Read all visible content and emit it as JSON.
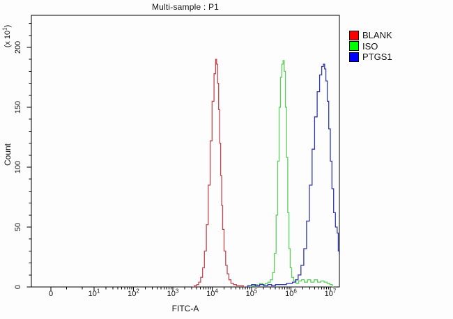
{
  "title": "Multi-sample : P1",
  "axes": {
    "x": {
      "label": "FITC-A",
      "scale": "biexponential-log",
      "tick_labels": [
        {
          "text": "0",
          "sup": ""
        },
        {
          "text": "10",
          "sup": "1"
        },
        {
          "text": "10",
          "sup": "2"
        },
        {
          "text": "10",
          "sup": "3"
        },
        {
          "text": "10",
          "sup": "4"
        },
        {
          "text": "10",
          "sup": "5"
        },
        {
          "text": "10",
          "sup": "6"
        },
        {
          "text": "10",
          "sup": "7"
        }
      ]
    },
    "y": {
      "label": "Count",
      "exponent_label": {
        "prefix": "(x 10",
        "sup": "1",
        "suffix": ")"
      },
      "tick_values": [
        0,
        50,
        100,
        150,
        200
      ],
      "minor_step": 10
    }
  },
  "legend": [
    {
      "label": "BLANK",
      "color": "#ff0000"
    },
    {
      "label": "ISO",
      "color": "#00ff00"
    },
    {
      "label": "PTGS1",
      "color": "#0000ff"
    }
  ],
  "chart_data": {
    "type": "line",
    "subtype": "flow-cytometry-histogram",
    "title": "Multi-sample : P1",
    "xlabel": "FITC-A",
    "ylabel": "Count (x10^1)",
    "x_scale": "log",
    "x_ticks": [
      0,
      10,
      100,
      1000,
      10000,
      100000,
      1000000,
      10000000
    ],
    "ylim": [
      0,
      230
    ],
    "grid": false,
    "legend_position": "top-right-outside",
    "series": [
      {
        "name": "BLANK",
        "legend_color": "#ff0000",
        "line_color": "#c1474f",
        "peak": {
          "x": 12600,
          "y": 190
        },
        "points": [
          [
            3200,
            0
          ],
          [
            3800,
            1
          ],
          [
            4300,
            2
          ],
          [
            4800,
            4
          ],
          [
            5400,
            8
          ],
          [
            6000,
            16
          ],
          [
            6700,
            30
          ],
          [
            7500,
            52
          ],
          [
            8400,
            85
          ],
          [
            9400,
            122
          ],
          [
            10500,
            155
          ],
          [
            11800,
            178
          ],
          [
            12600,
            190
          ],
          [
            13300,
            186
          ],
          [
            14100,
            170
          ],
          [
            15000,
            148
          ],
          [
            15900,
            120
          ],
          [
            16900,
            93
          ],
          [
            17900,
            68
          ],
          [
            19000,
            48
          ],
          [
            21000,
            30
          ],
          [
            23000,
            18
          ],
          [
            25000,
            11
          ],
          [
            28000,
            6
          ],
          [
            32000,
            3
          ],
          [
            38000,
            2
          ],
          [
            45000,
            1
          ],
          [
            55000,
            1
          ],
          [
            70000,
            0
          ]
        ]
      },
      {
        "name": "ISO",
        "legend_color": "#00ff00",
        "line_color": "#5cd05c",
        "peak": {
          "x": 650000,
          "y": 189
        },
        "points": [
          [
            90000,
            0
          ],
          [
            110000,
            1
          ],
          [
            130000,
            2
          ],
          [
            150000,
            1
          ],
          [
            175000,
            3
          ],
          [
            205000,
            2
          ],
          [
            240000,
            3
          ],
          [
            280000,
            4
          ],
          [
            320000,
            6
          ],
          [
            360000,
            12
          ],
          [
            400000,
            28
          ],
          [
            440000,
            60
          ],
          [
            480000,
            105
          ],
          [
            520000,
            150
          ],
          [
            560000,
            175
          ],
          [
            610000,
            186
          ],
          [
            650000,
            189
          ],
          [
            700000,
            180
          ],
          [
            750000,
            150
          ],
          [
            800000,
            108
          ],
          [
            860000,
            62
          ],
          [
            920000,
            32
          ],
          [
            990000,
            16
          ],
          [
            1100000,
            8
          ],
          [
            1250000,
            5
          ],
          [
            1450000,
            3
          ],
          [
            1700000,
            5
          ],
          [
            2000000,
            6
          ],
          [
            2400000,
            4
          ],
          [
            2900000,
            6
          ],
          [
            3500000,
            4
          ],
          [
            4300000,
            6
          ],
          [
            5200000,
            4
          ],
          [
            6300000,
            5
          ],
          [
            7600000,
            4
          ],
          [
            9000000,
            3
          ],
          [
            10500000,
            2
          ],
          [
            12000000,
            0
          ]
        ]
      },
      {
        "name": "PTGS1",
        "legend_color": "#0000ff",
        "line_color": "#3038b0",
        "peak": {
          "x": 6900000,
          "y": 186
        },
        "points": [
          [
            70000,
            0
          ],
          [
            90000,
            1
          ],
          [
            110000,
            2
          ],
          [
            140000,
            1
          ],
          [
            180000,
            2
          ],
          [
            230000,
            1
          ],
          [
            290000,
            2
          ],
          [
            360000,
            1
          ],
          [
            450000,
            2
          ],
          [
            560000,
            2
          ],
          [
            700000,
            2
          ],
          [
            850000,
            3
          ],
          [
            1000000,
            3
          ],
          [
            1200000,
            4
          ],
          [
            1400000,
            6
          ],
          [
            1650000,
            10
          ],
          [
            1950000,
            18
          ],
          [
            2300000,
            32
          ],
          [
            2700000,
            55
          ],
          [
            3200000,
            85
          ],
          [
            3700000,
            115
          ],
          [
            4300000,
            142
          ],
          [
            5000000,
            163
          ],
          [
            5700000,
            177
          ],
          [
            6400000,
            184
          ],
          [
            6900000,
            186
          ],
          [
            7400000,
            182
          ],
          [
            8000000,
            172
          ],
          [
            8700000,
            155
          ],
          [
            9500000,
            132
          ],
          [
            10500000,
            105
          ],
          [
            11500000,
            82
          ],
          [
            12800000,
            62
          ],
          [
            14200000,
            50
          ],
          [
            15600000,
            45
          ],
          [
            16200000,
            30
          ],
          [
            17500000,
            28
          ]
        ]
      }
    ]
  }
}
